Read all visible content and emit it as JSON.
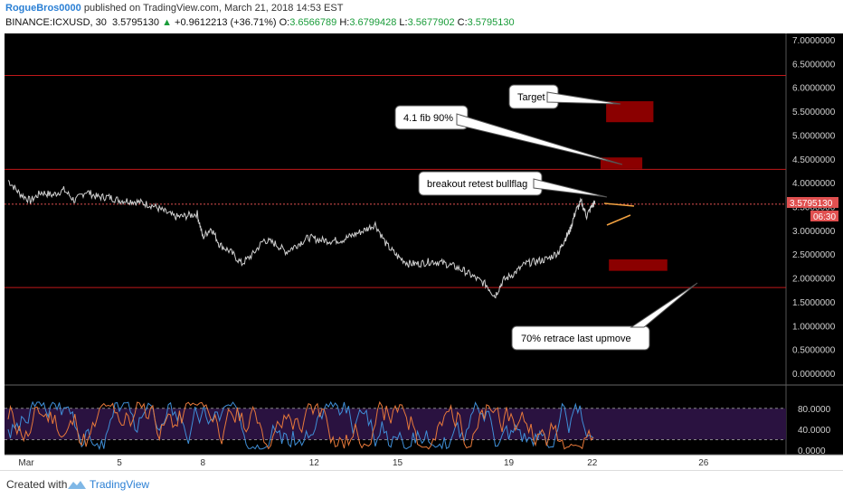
{
  "header": {
    "publisher": "RogueBros0000",
    "published_text": "published on TradingView.com, March 21, 2018 14:53 EST",
    "symbol_line": "BINANCE:ICXUSD, 30",
    "last_price": "3.5795130",
    "change": "+0.9612213 (+36.71%)",
    "open_label": "O:",
    "open": "3.6566789",
    "high_label": "H:",
    "high": "3.6799428",
    "low_label": "L:",
    "low": "3.5677902",
    "close_label": "C:",
    "close": "3.5795130"
  },
  "footer": {
    "created_with": "Created with",
    "brand": "TradingView"
  },
  "colors": {
    "background": "#000000",
    "candle_line": "#cfcfcf",
    "hline": "#c0181a",
    "price_line": "#e05050",
    "target_box": "#8b0000",
    "bullflag": "#f0a040",
    "stoch_k": "#e8793a",
    "stoch_d": "#3f8fd8",
    "stoch_band": "#2a1240"
  },
  "chart_data": [
    {
      "type": "line",
      "title": "",
      "x_ticks": [
        "Mar",
        "5",
        "8",
        "12",
        "15",
        "19",
        "22",
        "26"
      ],
      "y_ticks": [
        "7.0000000",
        "6.5000000",
        "6.0000000",
        "5.5000000",
        "5.0000000",
        "4.5000000",
        "4.0000000",
        "3.5000000",
        "3.0000000",
        "2.5000000",
        "2.0000000",
        "1.5000000",
        "1.0000000",
        "0.5000000",
        "0.0000000"
      ],
      "ylim": [
        -0.05,
        7.1
      ],
      "price_label": "3.5795130",
      "countdown_label": "06:30",
      "horizontal_levels": [
        6.25,
        4.28,
        3.55,
        1.8
      ],
      "target_zones": [
        {
          "x_start": 22.5,
          "x_end": 24.2,
          "y_low": 5.27,
          "y_high": 5.71
        },
        {
          "x_start": 22.3,
          "x_end": 23.8,
          "y_low": 4.29,
          "y_high": 4.53
        },
        {
          "x_start": 22.6,
          "x_end": 24.7,
          "y_low": 2.15,
          "y_high": 2.39
        }
      ],
      "annotations": [
        {
          "text": "Target"
        },
        {
          "text": "4.1 fib 90%"
        },
        {
          "text": "breakout retest bullflag"
        },
        {
          "text": "70% retrace last upmove"
        }
      ],
      "series": [
        {
          "values": [
            [
              1.0,
              4.05
            ],
            [
              1.4,
              3.78
            ],
            [
              1.8,
              3.62
            ],
            [
              2.2,
              3.8
            ],
            [
              2.6,
              3.74
            ],
            [
              3.0,
              3.85
            ],
            [
              3.4,
              3.62
            ],
            [
              3.8,
              3.82
            ],
            [
              4.2,
              3.7
            ],
            [
              4.6,
              3.7
            ],
            [
              5.0,
              3.63
            ],
            [
              5.4,
              3.62
            ],
            [
              5.8,
              3.58
            ],
            [
              6.2,
              3.52
            ],
            [
              6.6,
              3.4
            ],
            [
              7.0,
              3.28
            ],
            [
              7.4,
              3.3
            ],
            [
              7.8,
              3.35
            ],
            [
              8.0,
              2.85
            ],
            [
              8.3,
              3.05
            ],
            [
              8.6,
              2.7
            ],
            [
              9.0,
              2.55
            ],
            [
              9.4,
              2.3
            ],
            [
              9.8,
              2.5
            ],
            [
              10.2,
              2.8
            ],
            [
              10.6,
              2.72
            ],
            [
              11.0,
              2.55
            ],
            [
              11.4,
              2.7
            ],
            [
              11.8,
              2.85
            ],
            [
              12.2,
              2.8
            ],
            [
              12.6,
              2.78
            ],
            [
              13.0,
              2.8
            ],
            [
              13.4,
              2.9
            ],
            [
              13.8,
              3.0
            ],
            [
              14.2,
              3.13
            ],
            [
              14.6,
              2.7
            ],
            [
              15.0,
              2.45
            ],
            [
              15.4,
              2.3
            ],
            [
              15.8,
              2.3
            ],
            [
              16.2,
              2.35
            ],
            [
              16.6,
              2.32
            ],
            [
              17.0,
              2.25
            ],
            [
              17.4,
              2.15
            ],
            [
              17.8,
              2.0
            ],
            [
              18.2,
              1.85
            ],
            [
              18.5,
              1.62
            ],
            [
              18.8,
              1.95
            ],
            [
              19.2,
              2.1
            ],
            [
              19.6,
              2.3
            ],
            [
              20.0,
              2.35
            ],
            [
              20.4,
              2.4
            ],
            [
              20.8,
              2.55
            ],
            [
              21.0,
              2.8
            ],
            [
              21.2,
              3.0
            ],
            [
              21.4,
              3.4
            ],
            [
              21.6,
              3.6
            ],
            [
              21.8,
              3.3
            ],
            [
              22.0,
              3.52
            ],
            [
              22.1,
              3.58
            ]
          ]
        }
      ]
    },
    {
      "type": "line",
      "title": "",
      "y_ticks": [
        "80.0000",
        "40.0000",
        "0.0000"
      ],
      "ylim": [
        -5,
        100
      ],
      "band": [
        20,
        80
      ],
      "series": [
        {
          "values": [
            [
              1,
              60
            ],
            [
              22.1,
              40
            ]
          ]
        },
        {
          "values": [
            [
              1,
              55
            ],
            [
              22.1,
              45
            ]
          ]
        }
      ]
    }
  ]
}
